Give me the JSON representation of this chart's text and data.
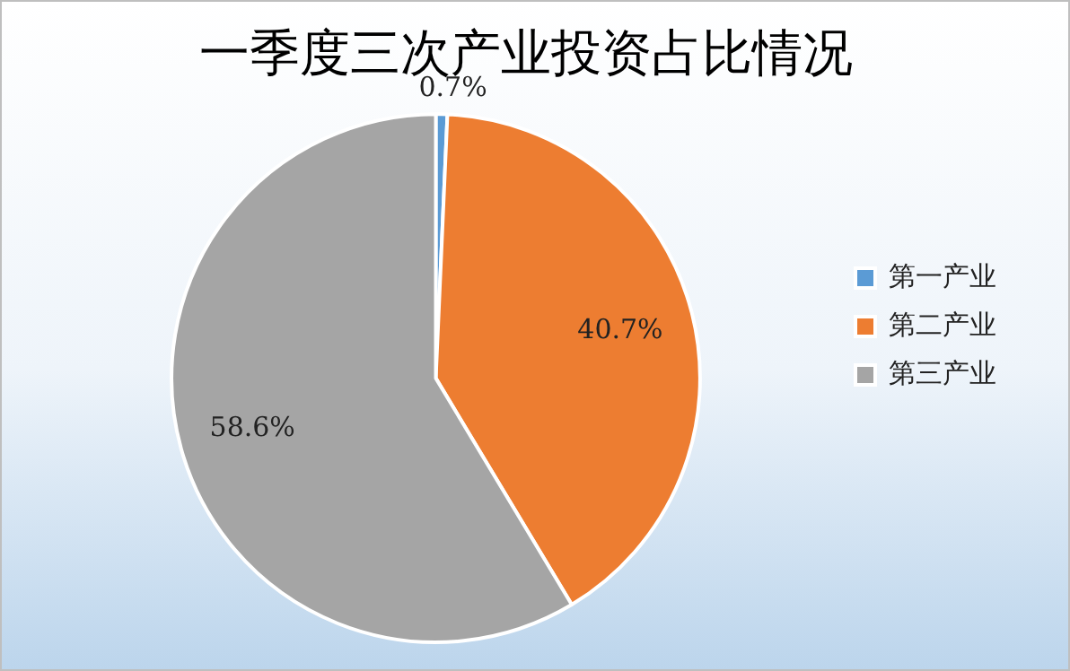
{
  "chart_data": {
    "type": "pie",
    "title": "一季度三次产业投资占比情况",
    "categories": [
      "第一产业",
      "第二产业",
      "第三产业"
    ],
    "values": [
      0.7,
      40.7,
      58.6
    ],
    "colors": [
      "#5b9bd5",
      "#ed7d31",
      "#a5a5a5"
    ],
    "value_labels": [
      "0.7%",
      "40.7%",
      "58.6%"
    ],
    "legend": "right"
  }
}
